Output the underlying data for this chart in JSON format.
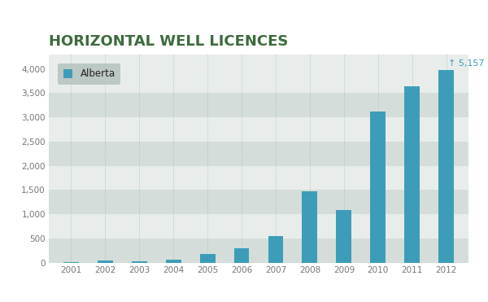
{
  "title": "HORIZONTAL WELL LICENCES",
  "title_color": "#3d6b3d",
  "title_fontsize": 13,
  "years": [
    2001,
    2002,
    2003,
    2004,
    2005,
    2006,
    2007,
    2008,
    2009,
    2010,
    2011,
    2012
  ],
  "values": [
    18,
    45,
    25,
    60,
    175,
    305,
    555,
    1470,
    1095,
    3120,
    3640,
    3980
  ],
  "bar_color": "#3d9db8",
  "annotation_value": "5,157",
  "annotation_arrow_color": "#3d9db8",
  "annotation_fontsize": 8,
  "legend_label": "Alberta",
  "legend_bg": "#b8c4bf",
  "yticks": [
    0,
    500,
    1000,
    1500,
    2000,
    2500,
    3000,
    3500,
    4000
  ],
  "ylim": [
    0,
    4300
  ],
  "band_colors": [
    "#d4ddd9",
    "#e8edeb"
  ],
  "bg_color": "#ffffff",
  "plot_bg": "#e8edeb",
  "dashed_line_color": "#aabab4",
  "tick_fontsize": 7.5,
  "tick_color": "#777777"
}
